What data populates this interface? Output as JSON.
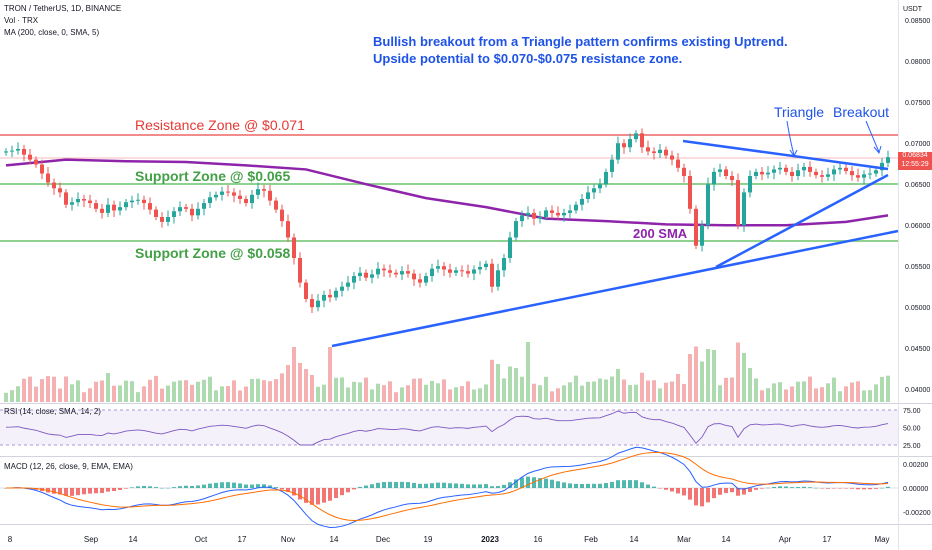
{
  "header": {
    "symbol_line": "TRON / TetherUS, 1D, BINANCE",
    "vol_line": "Vol · TRX",
    "ma_line": "MA (200, close, 0, SMA, 5)",
    "currency": "USDT"
  },
  "annotations": {
    "headline_1": "Bullish breakout from a Triangle pattern confirms existing Uptrend.",
    "headline_2": "Upside potential to $0.070-$0.075 resistance zone.",
    "resistance_label": "Resistance Zone @ $0.071",
    "support1_label": "Support Zone @ $0.065",
    "support2_label": "Support Zone @ $0.058",
    "sma_label": "200 SMA",
    "triangle_label": "Triangle",
    "breakout_label": "Breakout"
  },
  "price_tags": {
    "last_price": "0.06834",
    "countdown": "12:55:29"
  },
  "rsi_legend": "RSI (14, close, SMA, 14, 2)",
  "macd_legend": "MACD (12, 26, close, 9, EMA, EMA)",
  "colors": {
    "up": "#26a69a",
    "down": "#ef5350",
    "resistance": "#f28b8b",
    "support": "#8fd18f",
    "sma": "#8e24aa",
    "trendline": "#2962ff",
    "annotation_blue": "#1e53e5",
    "annotation_red": "#e53935",
    "annotation_green": "#43a047",
    "rsi_line": "#7e57c2",
    "macd_line": "#2962ff",
    "signal_line": "#ff6d00"
  },
  "chart_data": [
    {
      "type": "candlestick",
      "panel": "price",
      "yaxis_ticks": [
        "0.08500",
        "0.08000",
        "0.07500",
        "0.07000",
        "0.06500",
        "0.06000",
        "0.05500",
        "0.05000",
        "0.04500",
        "0.04000"
      ],
      "ylim": [
        0.0385,
        0.0865
      ],
      "xaxis_ticks": [
        "8",
        "Sep",
        "14",
        "Oct",
        "17",
        "Nov",
        "14",
        "Dec",
        "19",
        "2023",
        "16",
        "Feb",
        "14",
        "Mar",
        "14",
        "Apr",
        "17",
        "May"
      ],
      "levels": [
        {
          "label": "Resistance Zone @ $0.071",
          "value": 0.071
        },
        {
          "label": "Support Zone @ $0.065",
          "value": 0.065
        },
        {
          "label": "Support Zone @ $0.058",
          "value": 0.058
        }
      ],
      "last_price": 0.06834,
      "close_series": [
        0.069,
        0.0691,
        0.0693,
        0.0686,
        0.068,
        0.0674,
        0.0663,
        0.0652,
        0.0645,
        0.064,
        0.0625,
        0.0628,
        0.0632,
        0.063,
        0.0627,
        0.062,
        0.0615,
        0.0625,
        0.0618,
        0.0622,
        0.0628,
        0.063,
        0.0631,
        0.0627,
        0.0619,
        0.061,
        0.0604,
        0.061,
        0.0617,
        0.0622,
        0.062,
        0.0612,
        0.062,
        0.0627,
        0.0634,
        0.0637,
        0.0641,
        0.064,
        0.0636,
        0.0632,
        0.0627,
        0.0637,
        0.0644,
        0.0642,
        0.063,
        0.0619,
        0.0605,
        0.0585,
        0.056,
        0.053,
        0.051,
        0.05,
        0.0508,
        0.0515,
        0.0512,
        0.052,
        0.0525,
        0.053,
        0.0538,
        0.0542,
        0.0536,
        0.054,
        0.0547,
        0.0545,
        0.0542,
        0.054,
        0.0544,
        0.0541,
        0.0534,
        0.053,
        0.0538,
        0.0547,
        0.055,
        0.0546,
        0.0542,
        0.0545,
        0.0544,
        0.0541,
        0.0546,
        0.0549,
        0.0553,
        0.0525,
        0.0545,
        0.056,
        0.0585,
        0.0605,
        0.0612,
        0.0615,
        0.0608,
        0.061,
        0.0618,
        0.0615,
        0.0612,
        0.0615,
        0.0618,
        0.0625,
        0.0632,
        0.064,
        0.0645,
        0.065,
        0.0665,
        0.068,
        0.07,
        0.0695,
        0.0705,
        0.0712,
        0.0695,
        0.069,
        0.0688,
        0.0692,
        0.0685,
        0.068,
        0.067,
        0.066,
        0.062,
        0.0575,
        0.06,
        0.065,
        0.0665,
        0.0668,
        0.066,
        0.0655,
        0.06,
        0.064,
        0.066,
        0.0665,
        0.0662,
        0.0664,
        0.0668,
        0.067,
        0.0665,
        0.066,
        0.0667,
        0.0671,
        0.0665,
        0.0661,
        0.0659,
        0.0662,
        0.0668,
        0.067,
        0.0666,
        0.0661,
        0.0658,
        0.0662,
        0.0663,
        0.0667,
        0.0676,
        0.0683
      ]
    },
    {
      "type": "line",
      "panel": "price",
      "name": "200 SMA",
      "x": [
        0,
        10,
        20,
        30,
        40,
        50,
        60,
        70,
        80,
        90,
        100,
        110,
        120,
        130,
        140,
        147
      ],
      "values": [
        0.0673,
        0.068,
        0.0678,
        0.0677,
        0.0673,
        0.0668,
        0.065,
        0.0633,
        0.0622,
        0.0608,
        0.0605,
        0.0601,
        0.06,
        0.06,
        0.0604,
        0.0612
      ]
    },
    {
      "type": "bar",
      "panel": "volume",
      "name": "Vol · TRX"
    },
    {
      "type": "line",
      "panel": "rsi",
      "name": "RSI (14, close, SMA, 14, 2)",
      "yaxis_ticks": [
        "75.00",
        "50.00",
        "25.00"
      ],
      "ylim": [
        20,
        80
      ]
    },
    {
      "type": "line",
      "panel": "macd",
      "name": "MACD (12, 26, close, 9, EMA, EMA)",
      "yaxis_ticks": [
        "0.00200",
        "0.00000",
        "-0.00200"
      ],
      "ylim": [
        -0.0026,
        0.0026
      ]
    }
  ]
}
